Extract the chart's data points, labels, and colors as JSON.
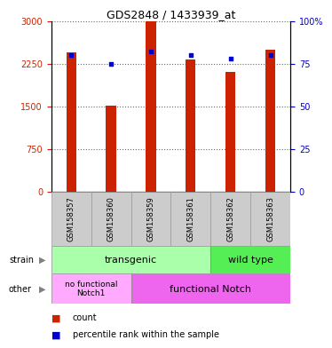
{
  "title": "GDS2848 / 1433939_at",
  "samples": [
    "GSM158357",
    "GSM158360",
    "GSM158359",
    "GSM158361",
    "GSM158362",
    "GSM158363"
  ],
  "counts": [
    2450,
    1510,
    3000,
    2320,
    2100,
    2500
  ],
  "percentiles": [
    80,
    75,
    82,
    80,
    78,
    80
  ],
  "ylim_left": [
    0,
    3000
  ],
  "ylim_right": [
    0,
    100
  ],
  "yticks_left": [
    0,
    750,
    1500,
    2250,
    3000
  ],
  "yticks_right": [
    0,
    25,
    50,
    75,
    100
  ],
  "bar_color": "#cc2200",
  "dot_color": "#0000cc",
  "bar_width": 0.25,
  "strain_transgenic_label": "transgenic",
  "strain_wildtype_label": "wild type",
  "other_nofunc_label": "no functional\nNotch1",
  "other_func_label": "functional Notch",
  "strain_label": "strain",
  "other_label": "other",
  "legend_count_label": "count",
  "legend_pct_label": "percentile rank within the sample",
  "color_transgenic": "#aaffaa",
  "color_wildtype": "#55ee55",
  "color_nofunc": "#ffaaff",
  "color_func": "#ee66ee",
  "color_sample_box": "#cccccc",
  "fig_width": 3.41,
  "fig_height": 3.84
}
